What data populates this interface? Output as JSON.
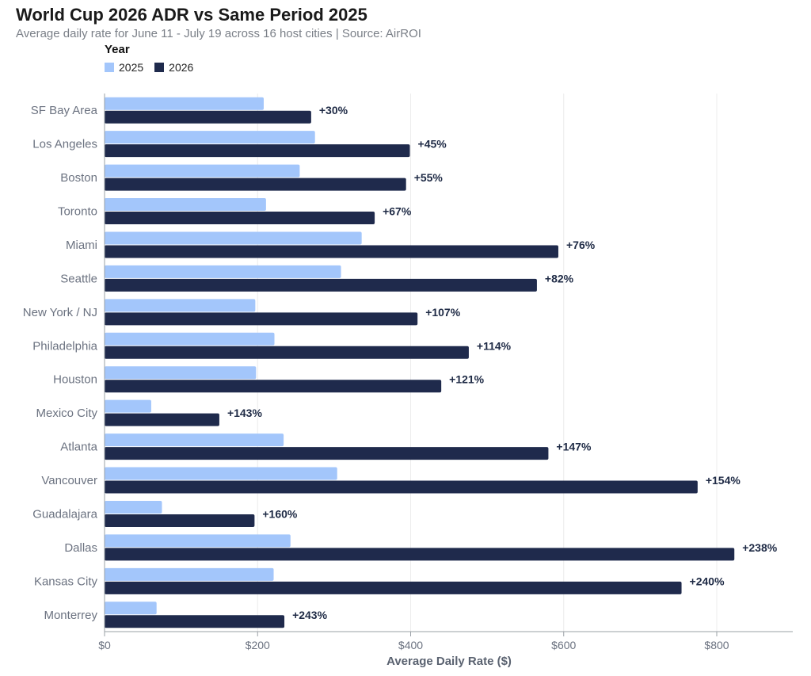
{
  "chart_data": {
    "type": "bar",
    "orientation": "horizontal",
    "title": "World Cup 2026 ADR vs Same Period 2025",
    "subtitle": "Average daily rate for June 11 - July 19 across 16 host cities | Source: AirROI",
    "xlabel": "Average Daily Rate ($)",
    "ylabel": "",
    "xlim": [
      0,
      900
    ],
    "xticks": [
      0,
      200,
      400,
      600,
      800
    ],
    "xtick_labels": [
      "$0",
      "$200",
      "$400",
      "$600",
      "$800"
    ],
    "grid": "vertical",
    "legend": {
      "title": "Year",
      "placement": "top-left"
    },
    "categories": [
      "SF Bay Area",
      "Los Angeles",
      "Boston",
      "Toronto",
      "Miami",
      "Seattle",
      "New York / NJ",
      "Philadelphia",
      "Houston",
      "Mexico City",
      "Atlanta",
      "Vancouver",
      "Guadalajara",
      "Dallas",
      "Kansas City",
      "Monterrey"
    ],
    "series": [
      {
        "name": "2025",
        "color": "#a3c6fb",
        "values": [
          208,
          275,
          255,
          211,
          336,
          309,
          197,
          222,
          198,
          61,
          234,
          304,
          75,
          243,
          221,
          68
        ]
      },
      {
        "name": "2026",
        "color": "#1f2a4c",
        "values": [
          270,
          399,
          394,
          353,
          593,
          565,
          409,
          476,
          440,
          150,
          580,
          775,
          196,
          823,
          754,
          235
        ]
      }
    ],
    "annotations": [
      "+30%",
      "+45%",
      "+55%",
      "+67%",
      "+76%",
      "+82%",
      "+107%",
      "+114%",
      "+121%",
      "+143%",
      "+147%",
      "+154%",
      "+160%",
      "+238%",
      "+240%",
      "+243%"
    ]
  }
}
